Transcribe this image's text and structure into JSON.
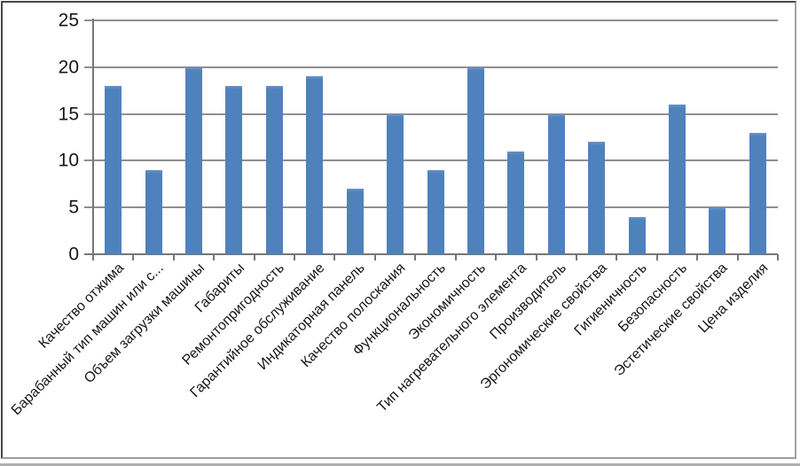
{
  "chart_data": {
    "type": "bar",
    "title": "",
    "xlabel": "",
    "ylabel": "",
    "categories": [
      "Качество отжима",
      "Барабанный тип машин или с...",
      "Объем загрузки машины",
      "Габариты",
      "Ремонтопригодность",
      "Гарантийное обслуживание",
      "Индикаторная панель",
      "Качество полоскания",
      "Функциональность",
      "Экономичность",
      "Тип нагревательного элемента",
      "Производитель",
      "Эргономические свойства",
      "Гигиеничность",
      "Безопасность",
      "Эстетические свойства",
      "Цена изделия"
    ],
    "values": [
      18,
      9,
      20,
      18,
      18,
      19,
      7,
      15,
      9,
      20,
      11,
      15,
      12,
      4,
      16,
      5,
      13
    ],
    "y_ticks": [
      0,
      5,
      10,
      15,
      20,
      25
    ],
    "ylim": [
      0,
      25
    ],
    "grid": "horizontal",
    "legend": "none",
    "category_label_rotation_deg": 45
  },
  "colors": {
    "bar": "#4f81bd",
    "bar_top": "#6a93c4",
    "gridline": "#8f8f8f",
    "axis": "#767676",
    "text": "#161616",
    "background": "#ffffff"
  }
}
